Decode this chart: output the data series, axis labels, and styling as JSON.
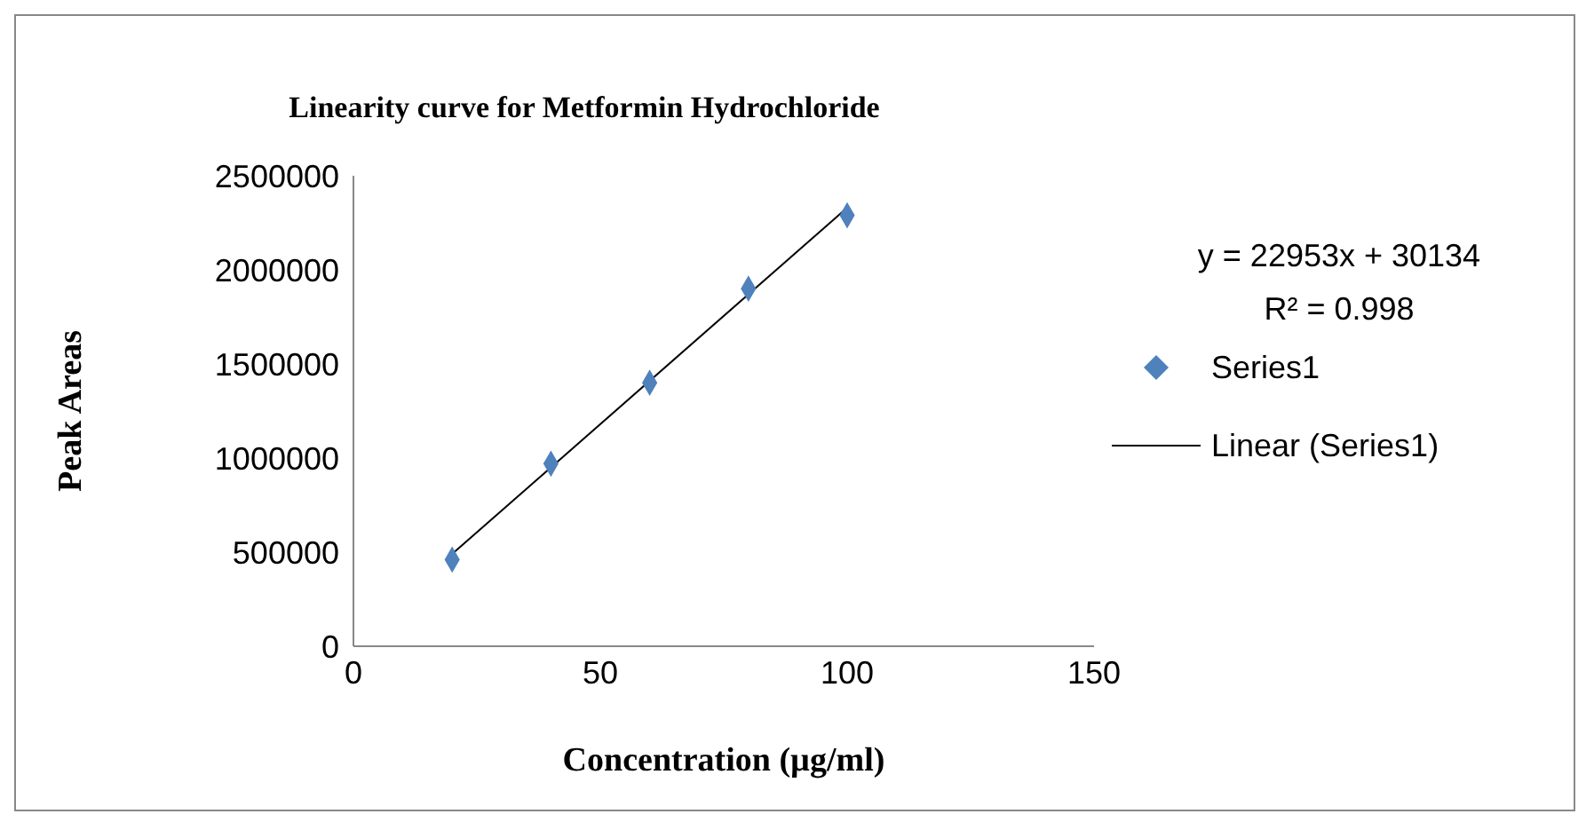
{
  "chart_data": {
    "type": "scatter",
    "title": "Linearity curve for Metformin Hydrochloride",
    "xlabel": "Concentration (µg/ml)",
    "ylabel": "Peak  Areas",
    "series": [
      {
        "name": "Series1",
        "color": "#4f81bd",
        "marker": "diamond",
        "x": [
          20,
          40,
          60,
          80,
          100
        ],
        "values": [
          460000,
          970000,
          1400000,
          1900000,
          2290000
        ]
      },
      {
        "name": "Linear (Series1)",
        "type": "line",
        "marker": "none",
        "color": "#000000",
        "x": [
          20,
          100
        ],
        "values": [
          490000,
          2330000
        ]
      }
    ],
    "xlim": [
      0,
      150
    ],
    "xticks": [
      0,
      50,
      100,
      150
    ],
    "ylim": [
      0,
      2500000
    ],
    "yticks": [
      0,
      500000,
      1000000,
      1500000,
      2000000,
      2500000
    ],
    "annotations": [
      "y = 22953x + 30134",
      "R² = 0.998"
    ],
    "legend": "right"
  }
}
